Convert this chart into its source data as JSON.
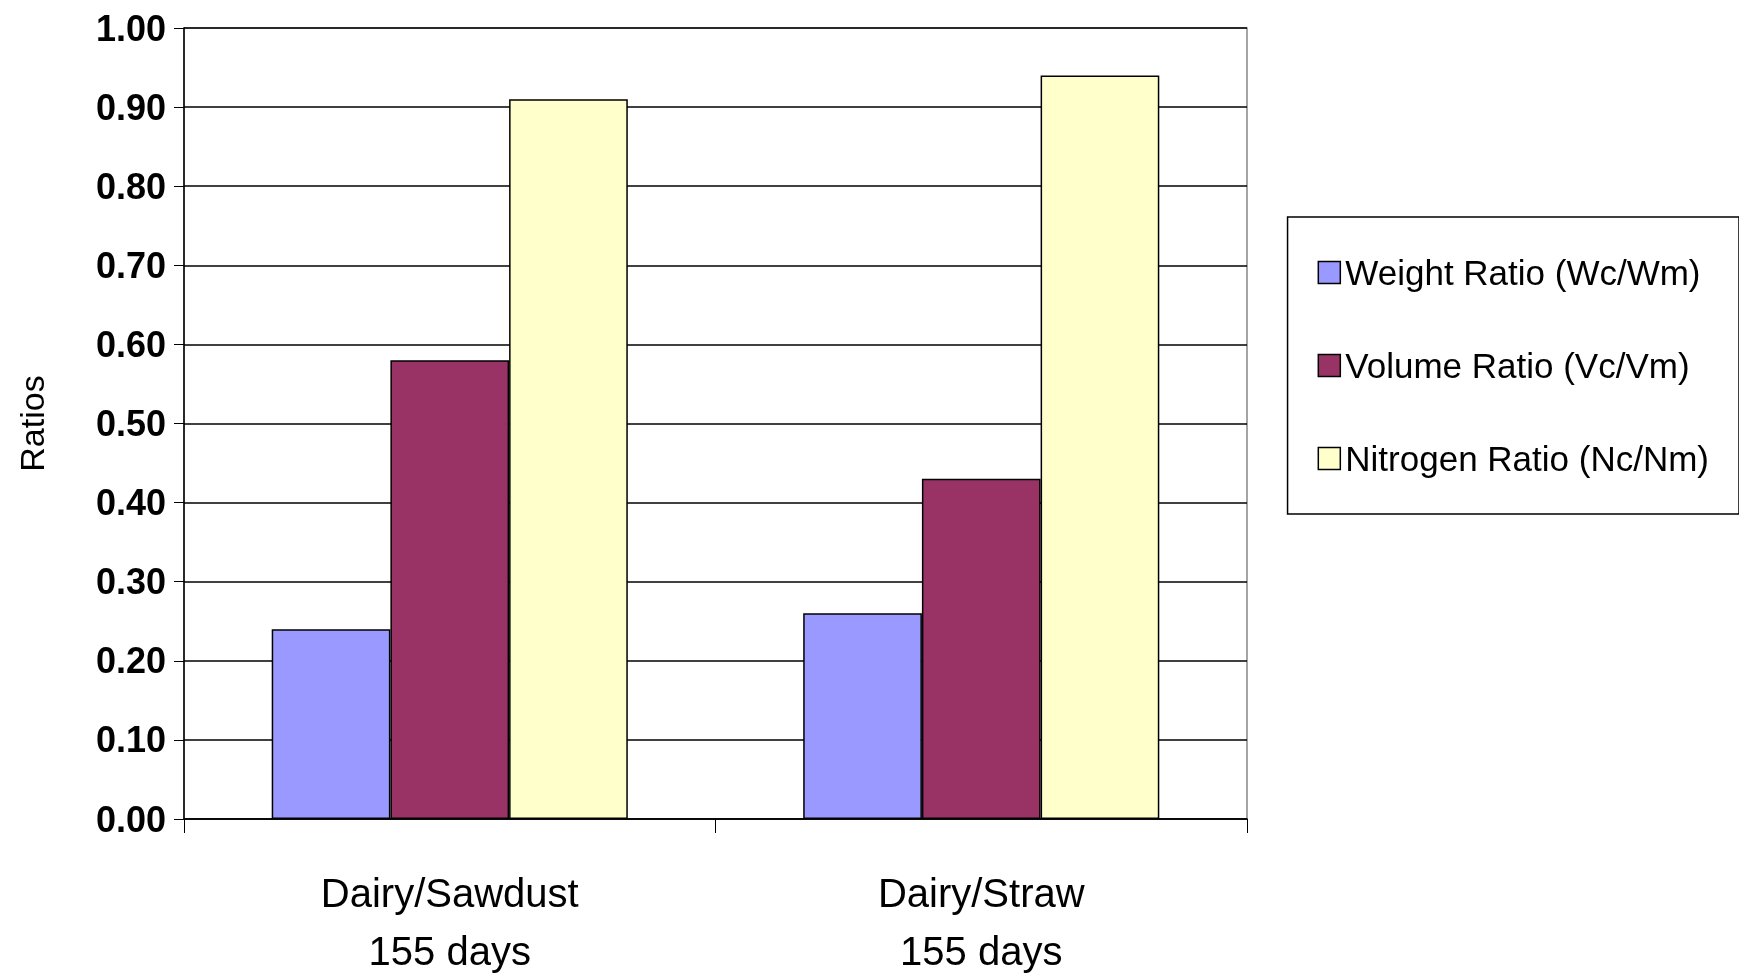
{
  "chart_data": {
    "type": "bar",
    "ylabel": "Ratios",
    "categories": [
      "Dairy/Sawdust\n155 days",
      "Dairy/Straw\n155 days"
    ],
    "series": [
      {
        "name": "Weight Ratio (Wc/Wm)",
        "color": "#9999ff",
        "values": [
          0.24,
          0.26
        ]
      },
      {
        "name": "Volume Ratio (Vc/Vm)",
        "color": "#993366",
        "values": [
          0.58,
          0.43
        ]
      },
      {
        "name": "Nitrogen Ratio (Nc/Nm)",
        "color": "#ffffcc",
        "values": [
          0.91,
          0.94
        ]
      }
    ],
    "ylim": [
      0,
      1
    ],
    "yticks": [
      {
        "value": 0,
        "label": "0.00"
      },
      {
        "value": 0.1,
        "label": "0.10"
      },
      {
        "value": 0.2,
        "label": "0.20"
      },
      {
        "value": 0.3,
        "label": "0.30"
      },
      {
        "value": 0.4,
        "label": "0.40"
      },
      {
        "value": 0.5,
        "label": "0.50"
      },
      {
        "value": 0.6,
        "label": "0.60"
      },
      {
        "value": 0.7,
        "label": "0.70"
      },
      {
        "value": 0.8,
        "label": "0.80"
      },
      {
        "value": 0.9,
        "label": "0.90"
      },
      {
        "value": 1,
        "label": "1.00"
      }
    ],
    "grid": "y",
    "legend": "right"
  }
}
